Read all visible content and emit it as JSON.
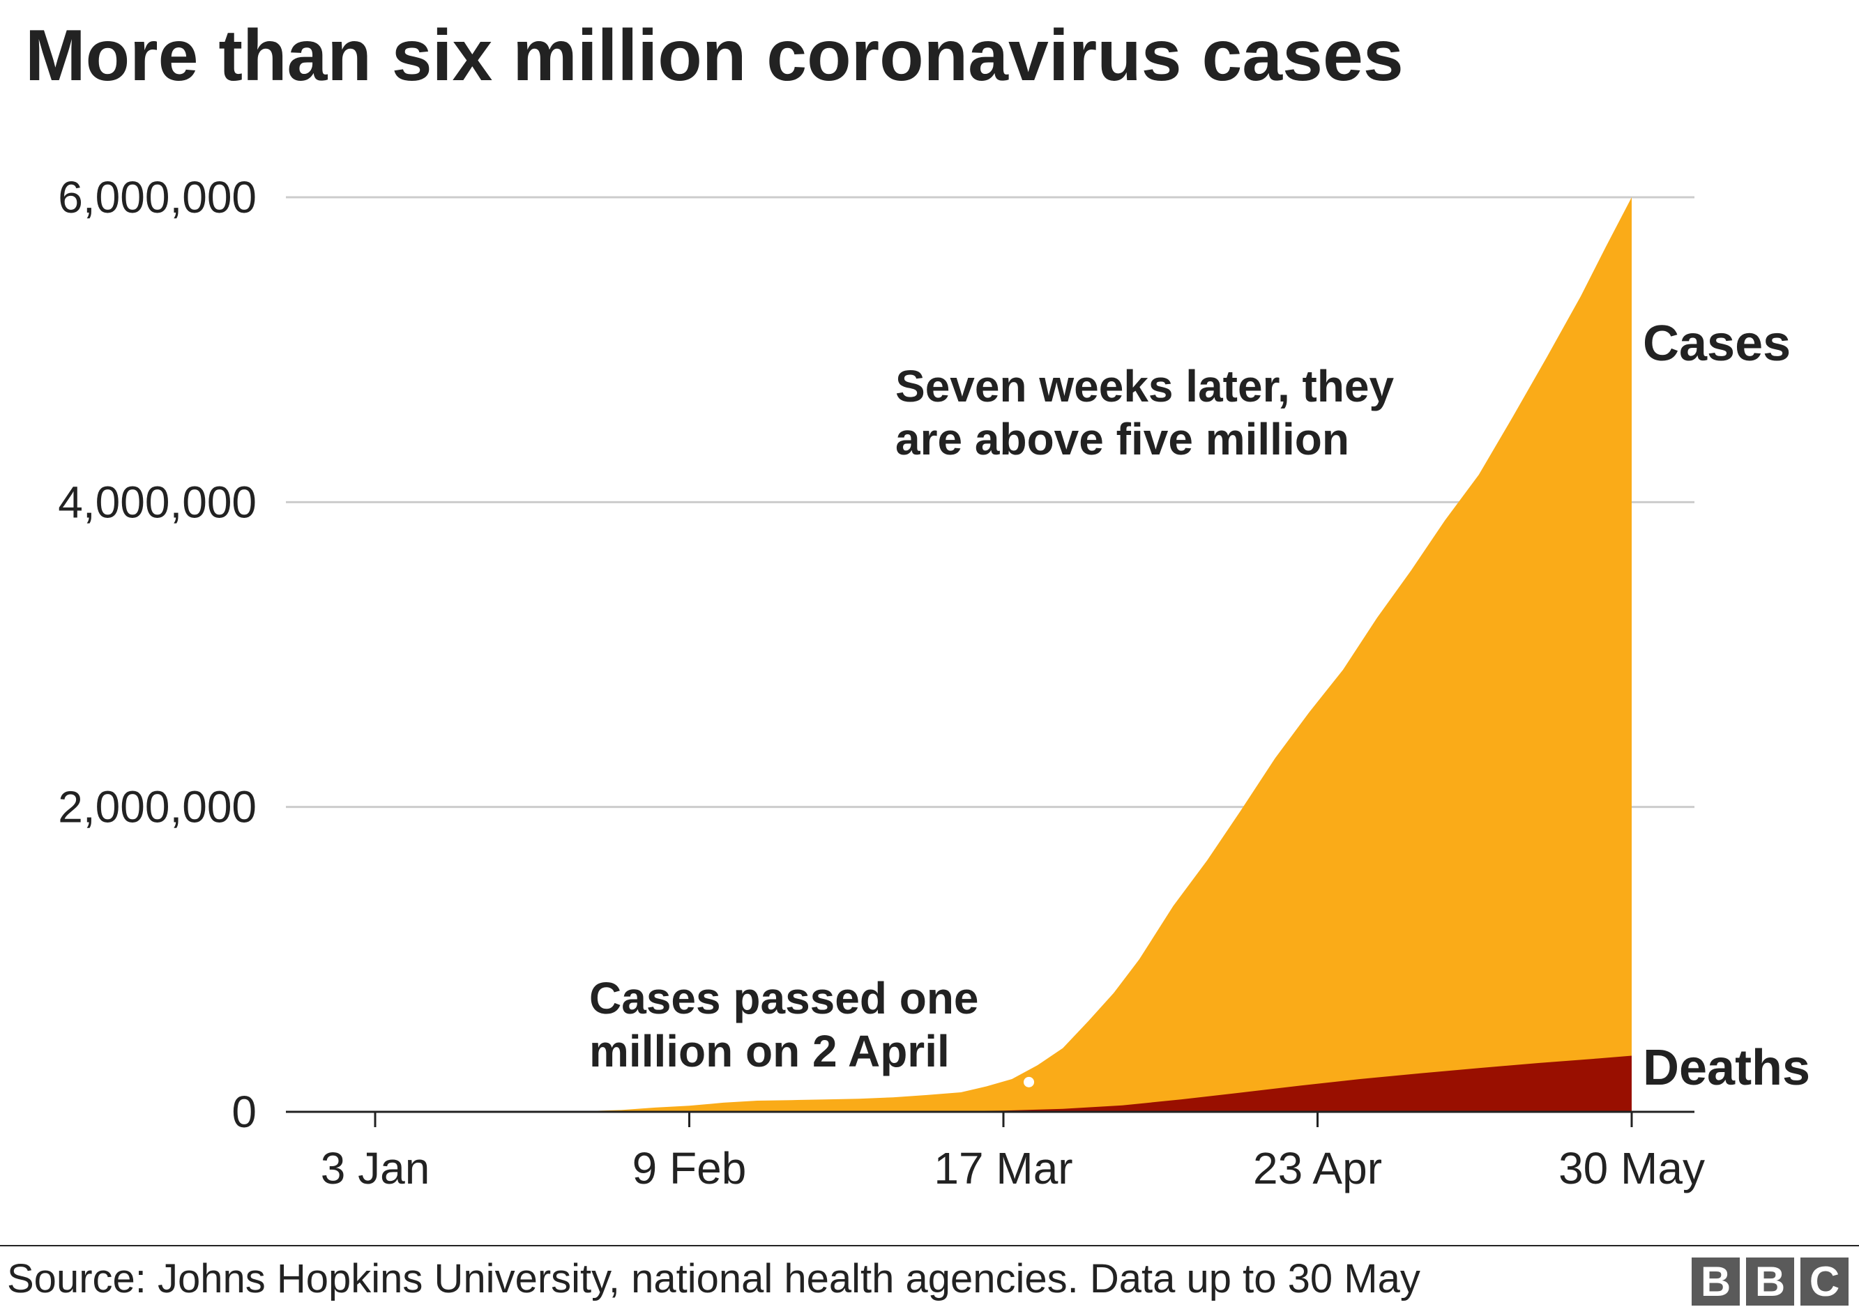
{
  "chart_data": {
    "type": "area",
    "title": "More than six million coronavirus cases",
    "xlabel": "",
    "ylabel": "",
    "x_range": [
      "2020-01-03",
      "2020-05-30"
    ],
    "ylim": [
      0,
      6000000
    ],
    "grid": true,
    "y_ticks": [
      {
        "value": 0,
        "label": "0"
      },
      {
        "value": 2000000,
        "label": "2,000,000"
      },
      {
        "value": 4000000,
        "label": "4,000,000"
      },
      {
        "value": 6000000,
        "label": "6,000,000"
      }
    ],
    "x_ticks": [
      {
        "date": "2020-01-03",
        "label": "3 Jan"
      },
      {
        "date": "2020-02-09",
        "label": "9 Feb"
      },
      {
        "date": "2020-03-17",
        "label": "17 Mar"
      },
      {
        "date": "2020-04-23",
        "label": "23 Apr"
      },
      {
        "date": "2020-05-30",
        "label": "30 May"
      }
    ],
    "series": [
      {
        "name": "Cases",
        "color": "#faab18",
        "points": [
          [
            "2020-01-03",
            0
          ],
          [
            "2020-01-22",
            580
          ],
          [
            "2020-01-27",
            2900
          ],
          [
            "2020-02-01",
            12000
          ],
          [
            "2020-02-05",
            28000
          ],
          [
            "2020-02-09",
            40000
          ],
          [
            "2020-02-13",
            60000
          ],
          [
            "2020-02-17",
            73000
          ],
          [
            "2020-02-21",
            77000
          ],
          [
            "2020-02-25",
            81000
          ],
          [
            "2020-02-29",
            86000
          ],
          [
            "2020-03-04",
            95000
          ],
          [
            "2020-03-08",
            110000
          ],
          [
            "2020-03-12",
            128000
          ],
          [
            "2020-03-15",
            167000
          ],
          [
            "2020-03-18",
            215000
          ],
          [
            "2020-03-21",
            305000
          ],
          [
            "2020-03-24",
            418000
          ],
          [
            "2020-03-27",
            595000
          ],
          [
            "2020-03-30",
            780000
          ],
          [
            "2020-04-02",
            1000000
          ],
          [
            "2020-04-06",
            1350000
          ],
          [
            "2020-04-10",
            1650000
          ],
          [
            "2020-04-14",
            1980000
          ],
          [
            "2020-04-18",
            2320000
          ],
          [
            "2020-04-22",
            2620000
          ],
          [
            "2020-04-26",
            2900000
          ],
          [
            "2020-04-30",
            3240000
          ],
          [
            "2020-05-04",
            3550000
          ],
          [
            "2020-05-08",
            3880000
          ],
          [
            "2020-05-12",
            4180000
          ],
          [
            "2020-05-16",
            4560000
          ],
          [
            "2020-05-20",
            4950000
          ],
          [
            "2020-05-24",
            5350000
          ],
          [
            "2020-05-27",
            5680000
          ],
          [
            "2020-05-30",
            6000000
          ]
        ]
      },
      {
        "name": "Deaths",
        "color": "#990f00",
        "points": [
          [
            "2020-01-03",
            0
          ],
          [
            "2020-02-09",
            900
          ],
          [
            "2020-03-08",
            3800
          ],
          [
            "2020-03-17",
            8000
          ],
          [
            "2020-03-24",
            19000
          ],
          [
            "2020-03-31",
            42000
          ],
          [
            "2020-04-07",
            82000
          ],
          [
            "2020-04-14",
            126000
          ],
          [
            "2020-04-21",
            172000
          ],
          [
            "2020-04-28",
            215000
          ],
          [
            "2020-05-05",
            252000
          ],
          [
            "2020-05-12",
            287000
          ],
          [
            "2020-05-19",
            320000
          ],
          [
            "2020-05-26",
            350000
          ],
          [
            "2020-05-30",
            368000
          ]
        ]
      }
    ],
    "annotations": [
      {
        "id": "one-million",
        "lines": [
          "Cases passed one",
          "million on 2 April"
        ]
      },
      {
        "id": "five-million",
        "lines": [
          "Seven weeks later, they",
          "are above five million"
        ]
      }
    ]
  },
  "footer": {
    "source": "Source: Johns Hopkins University, national health agencies. Data up to 30 May",
    "logo_letters": [
      "B",
      "B",
      "C"
    ]
  }
}
